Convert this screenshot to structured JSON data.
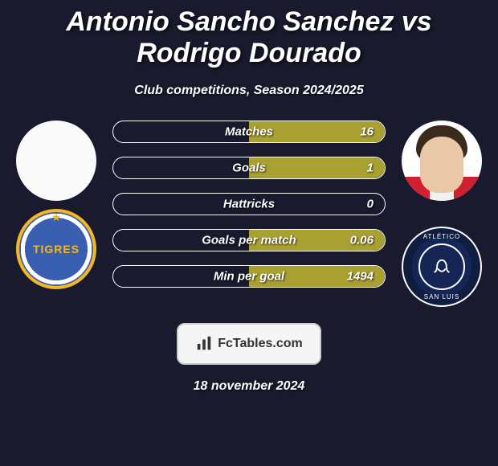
{
  "title": "Antonio Sancho Sanchez vs Rodrigo Dourado",
  "subtitle": "Club competitions, Season 2024/2025",
  "brand_name": "FcTables.com",
  "date_line": "18 november 2024",
  "bar_color_right": "#a8a031",
  "bar_border": "#ffffff",
  "bg_color": "#1a1a2e",
  "stats": [
    {
      "label": "Matches",
      "right_val": "16",
      "left_fill": 0,
      "right_fill": 100
    },
    {
      "label": "Goals",
      "right_val": "1",
      "left_fill": 0,
      "right_fill": 100
    },
    {
      "label": "Hattricks",
      "right_val": "0",
      "left_fill": 0,
      "right_fill": 0
    },
    {
      "label": "Goals per match",
      "right_val": "0.06",
      "left_fill": 0,
      "right_fill": 100
    },
    {
      "label": "Min per goal",
      "right_val": "1494",
      "left_fill": 0,
      "right_fill": 100
    }
  ],
  "left_player": {
    "has_photo": false,
    "team_label": "TIGRES"
  },
  "right_player": {
    "has_photo": true,
    "team_top": "ATLÉTICO",
    "team_bottom": "SAN LUIS"
  }
}
